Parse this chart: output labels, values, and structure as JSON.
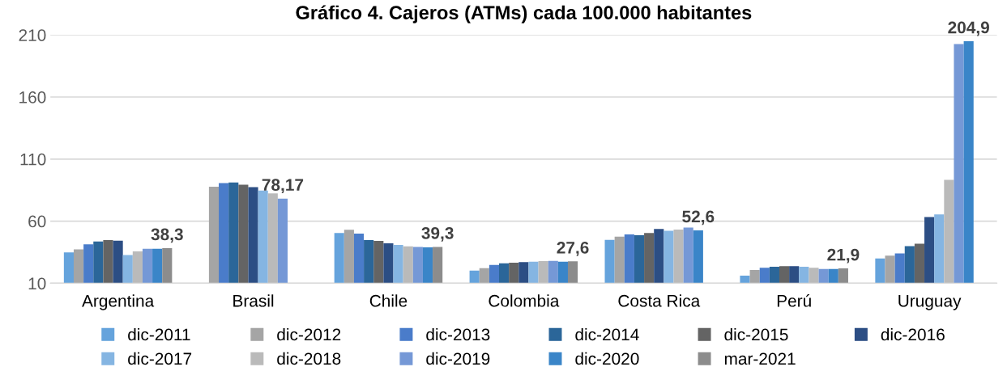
{
  "chart_data": {
    "type": "bar",
    "title": "Gráfico 4. Cajeros (ATMs) cada 100.000 habitantes",
    "categories": [
      "Argentina",
      "Brasil",
      "Chile",
      "Colombia",
      "Costa Rica",
      "Perú",
      "Uruguay"
    ],
    "series": [
      {
        "name": "dic-2011",
        "color": "#65a3dc",
        "values": [
          34.9,
          null,
          50.4,
          20.2,
          45,
          16.1,
          29.9
        ]
      },
      {
        "name": "dic-2012",
        "color": "#a5a5a5",
        "values": [
          37.3,
          87.8,
          53,
          22.2,
          47.6,
          20.6,
          32.3
        ]
      },
      {
        "name": "dic-2013",
        "color": "#4a7cca",
        "values": [
          41.4,
          90.6,
          50,
          24.8,
          49.3,
          22.4,
          34.1
        ]
      },
      {
        "name": "dic-2014",
        "color": "#2b6699",
        "values": [
          43.6,
          91.1,
          44.8,
          26.1,
          48.7,
          23.2,
          39.9
        ]
      },
      {
        "name": "dic-2015",
        "color": "#646464",
        "values": [
          44.7,
          89.3,
          44.1,
          26.5,
          50.4,
          23.7,
          41.9
        ]
      },
      {
        "name": "dic-2016",
        "color": "#2c4e84",
        "values": [
          44.2,
          87.4,
          42.2,
          27,
          53.7,
          23.7,
          63.3
        ]
      },
      {
        "name": "dic-2017",
        "color": "#85b5e2",
        "values": [
          32.8,
          84.6,
          40.9,
          27.4,
          52.2,
          23.2,
          65.5
        ]
      },
      {
        "name": "dic-2018",
        "color": "#bababa",
        "values": [
          35.6,
          82.4,
          39.8,
          27.8,
          53.3,
          22.4,
          93.2
        ]
      },
      {
        "name": "dic-2019",
        "color": "#7598d6",
        "values": [
          37.7,
          78.17,
          39.3,
          28,
          54.8,
          21.5,
          202.7
        ],
        "value_labels": [
          null,
          "78,17",
          null,
          null,
          null,
          null,
          null
        ]
      },
      {
        "name": "dic-2020",
        "color": "#3a85c8",
        "values": [
          37.7,
          null,
          38.9,
          27.4,
          52.6,
          21.5,
          204.9
        ],
        "value_labels": [
          null,
          null,
          null,
          null,
          "52,6",
          null,
          "204,9"
        ]
      },
      {
        "name": "mar-2021",
        "color": "#8c8c8c",
        "values": [
          38.3,
          null,
          39.3,
          27.6,
          null,
          21.9,
          null
        ],
        "value_labels": [
          "38,3",
          null,
          "39,3",
          "27,6",
          null,
          "21,9",
          null
        ]
      }
    ],
    "ylim": [
      10,
      210
    ],
    "yticks": [
      10,
      60,
      110,
      160,
      210
    ],
    "grid": "y",
    "legend": "bottom"
  }
}
